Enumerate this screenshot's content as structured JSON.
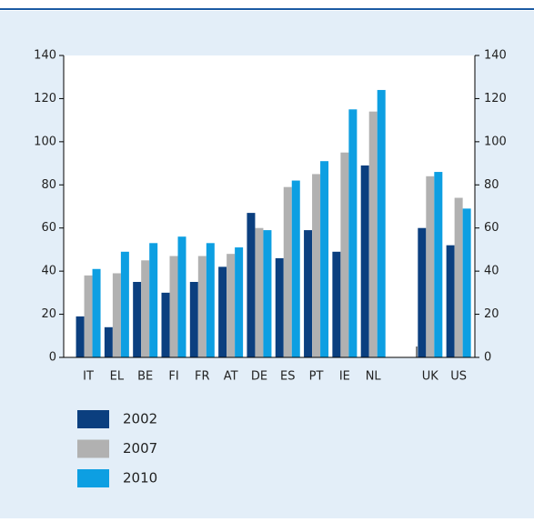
{
  "chart_data": {
    "type": "bar",
    "categories": [
      "IT",
      "EL",
      "BE",
      "FI",
      "FR",
      "AT",
      "DE",
      "ES",
      "PT",
      "IE",
      "NL",
      null,
      "UK",
      "US"
    ],
    "series": [
      {
        "name": "2002",
        "color": "#0b3f7f",
        "values": [
          19,
          14,
          35,
          30,
          35,
          42,
          67,
          46,
          59,
          49,
          89,
          null,
          60,
          52
        ]
      },
      {
        "name": "2007",
        "color": "#b1b1b1",
        "values": [
          38,
          39,
          45,
          47,
          47,
          48,
          60,
          79,
          85,
          95,
          114,
          null,
          84,
          74
        ]
      },
      {
        "name": "2010",
        "color": "#0d9fe2",
        "values": [
          41,
          49,
          53,
          56,
          53,
          51,
          59,
          82,
          91,
          115,
          124,
          null,
          86,
          69
        ]
      }
    ],
    "ylim": [
      0,
      140
    ],
    "yticks": [
      0,
      20,
      40,
      60,
      80,
      100,
      120,
      140
    ],
    "y2lim": [
      0,
      140
    ],
    "y2ticks": [
      0,
      20,
      40,
      60,
      80,
      100,
      120,
      140
    ],
    "grid": false
  }
}
